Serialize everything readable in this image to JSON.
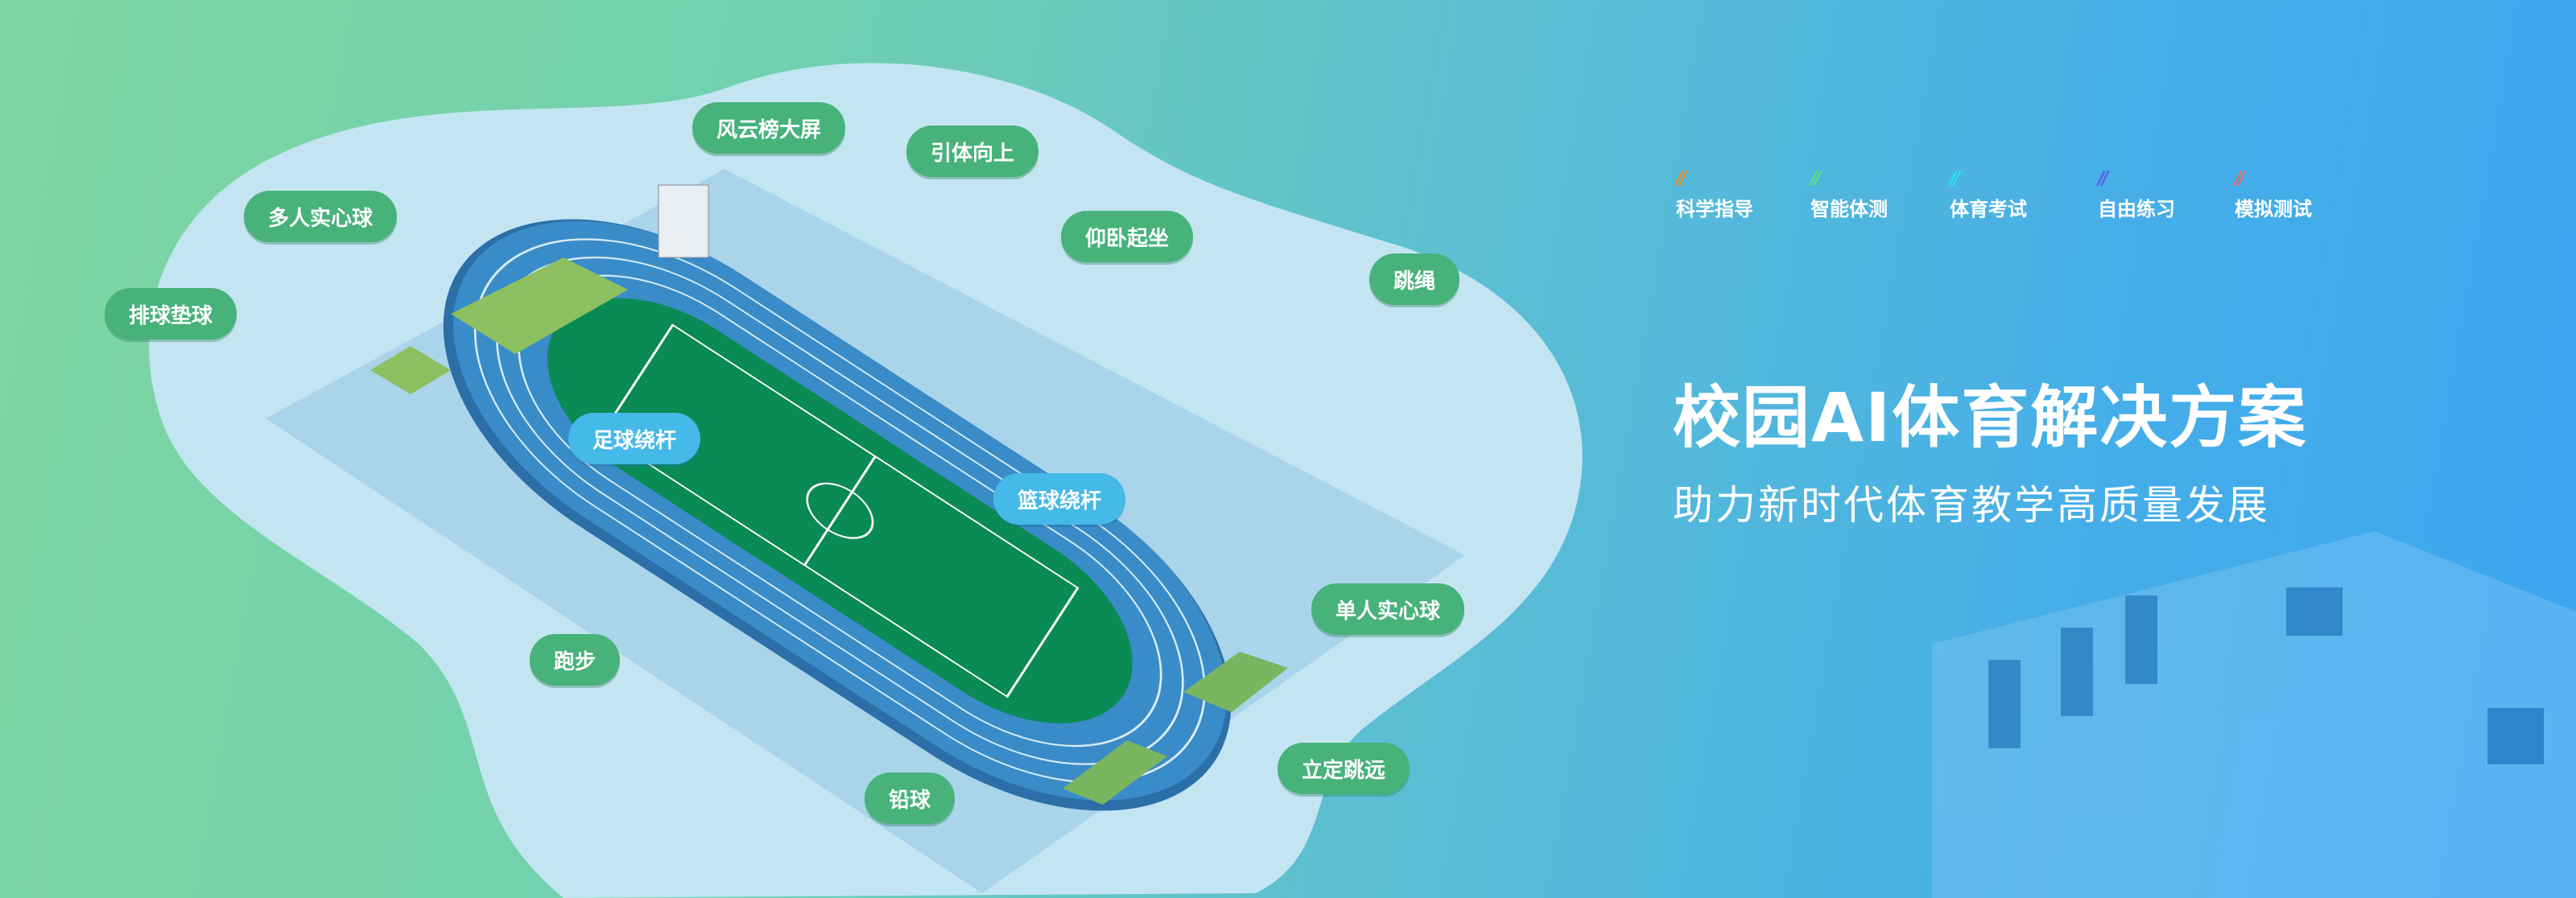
{
  "tags": [
    {
      "label": "科学指导",
      "color": "#f08a24"
    },
    {
      "label": "智能体测",
      "color": "#5ee07a"
    },
    {
      "label": "体育考试",
      "color": "#22e8f0"
    },
    {
      "label": "自由练习",
      "color": "#5a5ae8"
    },
    {
      "label": "模拟测试",
      "color": "#e86a6a"
    }
  ],
  "hero": {
    "title": "校园AI体育解决方案",
    "subtitle": "助力新时代体育教学高质量发展"
  },
  "stations": {
    "leaderboard": "风云榜大屏",
    "pullup": "引体向上",
    "multi_ball": "多人实心球",
    "situp": "仰卧起坐",
    "rope": "跳绳",
    "volleyball": "排球垫球",
    "football": "足球绕杆",
    "basketball": "篮球绕杆",
    "single_ball": "单人实心球",
    "running": "跑步",
    "long_jump": "立定跳远",
    "shot_put": "铅球"
  },
  "colors": {
    "track": "#3a8cc8",
    "field": "#0a8a55",
    "blob": "#c3e5f2",
    "platform": "#a9d4ea",
    "pill": "#47b27a",
    "pill_blue": "#45b9e8"
  }
}
